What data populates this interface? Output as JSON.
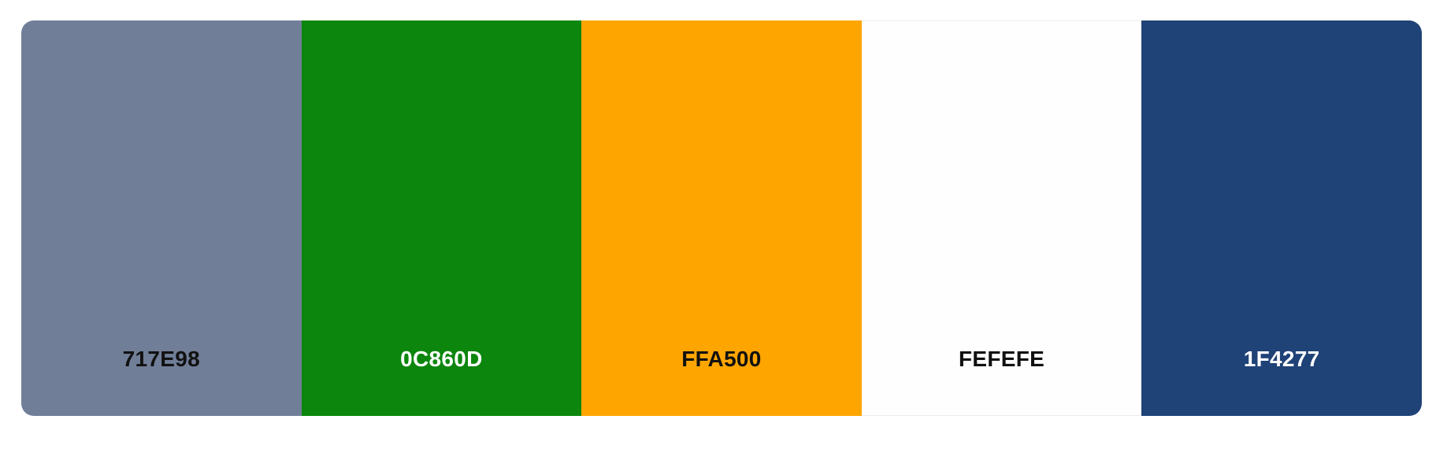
{
  "palette": {
    "swatches": [
      {
        "hex": "717E98",
        "color": "#717E98",
        "text_color": "#111111"
      },
      {
        "hex": "0C860D",
        "color": "#0C860D",
        "text_color": "#ffffff"
      },
      {
        "hex": "FFA500",
        "color": "#FFA500",
        "text_color": "#111111"
      },
      {
        "hex": "FEFEFE",
        "color": "#FEFEFE",
        "text_color": "#111111"
      },
      {
        "hex": "1F4277",
        "color": "#1F4277",
        "text_color": "#ffffff"
      }
    ]
  }
}
